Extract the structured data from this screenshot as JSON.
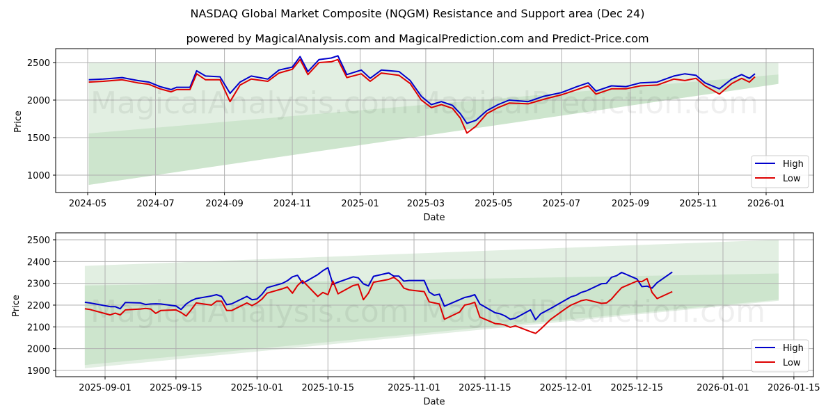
{
  "title": "NASDAQ Global Market Composite (NQGM) Resistance and Support area (Dec 24)",
  "subtitle": "powered by MagicalAnalysis.com and MagicalPrediction.com and Predict-Price.com",
  "watermarks": [
    "MagicalAnalysis.com",
    "MagicalPrediction.com"
  ],
  "colors": {
    "high": "#0000cc",
    "low": "#dd0000",
    "band_outer": "#e2efe2",
    "band_inner": "#cde5cd",
    "grid": "#b0b0b0"
  },
  "legend": {
    "high": "High",
    "low": "Low"
  },
  "chart_data": [
    {
      "type": "line",
      "title": "NASDAQ Global Market Composite (NQGM) Resistance and Support area (Dec 24)",
      "xlabel": "Date",
      "ylabel": "Price",
      "ylim": [
        770,
        2680
      ],
      "yticks": [
        1000,
        1500,
        2000,
        2500
      ],
      "xticks": [
        "2024-05",
        "2024-07",
        "2024-09",
        "2024-11",
        "2025-01",
        "2025-03",
        "2025-05",
        "2025-07",
        "2025-09",
        "2025-11",
        "2026-01"
      ],
      "grid": true,
      "legend_position": "lower right",
      "bands": {
        "outer": {
          "start": "2024-05-02",
          "end": "2026-01-12",
          "upper": [
            2500,
            2500
          ],
          "lower_start": 870,
          "lower_end": 2230
        },
        "inner": {
          "start": "2024-05-02",
          "end": "2026-01-12",
          "upper_start": 1555,
          "upper_end": 2340,
          "lower_start": 870,
          "lower_end": 2215
        },
        "light_top": {
          "upper_start": 2500,
          "upper_end": 2490,
          "lower_start": 1555,
          "lower_end": 2340
        }
      },
      "x": [
        "2024-05-02",
        "2024-05-15",
        "2024-06-01",
        "2024-06-15",
        "2024-06-25",
        "2024-07-05",
        "2024-07-15",
        "2024-07-20",
        "2024-08-01",
        "2024-08-07",
        "2024-08-15",
        "2024-08-28",
        "2024-09-06",
        "2024-09-15",
        "2024-09-25",
        "2024-10-10",
        "2024-10-20",
        "2024-11-01",
        "2024-11-08",
        "2024-11-15",
        "2024-11-25",
        "2024-12-06",
        "2024-12-12",
        "2024-12-20",
        "2025-01-02",
        "2025-01-10",
        "2025-01-20",
        "2025-02-05",
        "2025-02-15",
        "2025-02-25",
        "2025-03-06",
        "2025-03-15",
        "2025-03-25",
        "2025-04-01",
        "2025-04-07",
        "2025-04-15",
        "2025-04-25",
        "2025-05-05",
        "2025-05-15",
        "2025-06-01",
        "2025-06-15",
        "2025-07-01",
        "2025-07-15",
        "2025-07-25",
        "2025-08-01",
        "2025-08-15",
        "2025-08-28",
        "2025-09-10",
        "2025-09-25",
        "2025-10-10",
        "2025-10-20",
        "2025-10-30",
        "2025-11-07",
        "2025-11-20",
        "2025-12-01",
        "2025-12-10",
        "2025-12-17",
        "2025-12-22"
      ],
      "series": [
        {
          "name": "High",
          "values": [
            2270,
            2280,
            2300,
            2260,
            2240,
            2180,
            2140,
            2170,
            2170,
            2390,
            2320,
            2310,
            2090,
            2240,
            2320,
            2280,
            2400,
            2440,
            2580,
            2380,
            2540,
            2560,
            2590,
            2340,
            2400,
            2290,
            2400,
            2380,
            2260,
            2050,
            1940,
            1980,
            1930,
            1820,
            1690,
            1730,
            1860,
            1940,
            2000,
            1980,
            2050,
            2100,
            2180,
            2230,
            2120,
            2190,
            2180,
            2230,
            2240,
            2320,
            2350,
            2330,
            2230,
            2150,
            2280,
            2340,
            2290,
            2350
          ]
        },
        {
          "name": "Low",
          "values": [
            2240,
            2250,
            2270,
            2230,
            2210,
            2150,
            2110,
            2140,
            2140,
            2350,
            2270,
            2270,
            1980,
            2200,
            2280,
            2250,
            2360,
            2410,
            2540,
            2340,
            2500,
            2510,
            2540,
            2300,
            2350,
            2250,
            2360,
            2330,
            2220,
            2000,
            1900,
            1940,
            1890,
            1760,
            1560,
            1650,
            1820,
            1900,
            1960,
            1950,
            2010,
            2070,
            2140,
            2190,
            2080,
            2150,
            2150,
            2190,
            2200,
            2280,
            2260,
            2290,
            2190,
            2080,
            2220,
            2290,
            2240,
            2310
          ]
        }
      ]
    },
    {
      "type": "line",
      "xlabel": "Date",
      "ylabel": "Price",
      "ylim": [
        1870,
        2530
      ],
      "yticks": [
        1900,
        2000,
        2100,
        2200,
        2300,
        2400,
        2500
      ],
      "xticks": [
        "2025-09-01",
        "2025-09-15",
        "2025-10-01",
        "2025-10-15",
        "2025-11-01",
        "2025-11-15",
        "2025-12-01",
        "2025-12-15",
        "2026-01-01",
        "2026-01-15"
      ],
      "grid": true,
      "legend_position": "lower right",
      "bands": {
        "outer": {
          "start": "2025-08-28",
          "end": "2026-01-12",
          "upper_start": 2380,
          "upper_end": 2500,
          "lower_start": 1910,
          "lower_end": 2220
        },
        "inner": {
          "start": "2025-08-28",
          "end": "2026-01-12",
          "upper_start": 2290,
          "upper_end": 2345,
          "lower_start": 1925,
          "lower_end": 2225
        }
      },
      "x": [
        "2025-08-28",
        "2025-08-29",
        "2025-09-02",
        "2025-09-03",
        "2025-09-04",
        "2025-09-05",
        "2025-09-08",
        "2025-09-09",
        "2025-09-10",
        "2025-09-11",
        "2025-09-12",
        "2025-09-15",
        "2025-09-16",
        "2025-09-17",
        "2025-09-18",
        "2025-09-19",
        "2025-09-22",
        "2025-09-23",
        "2025-09-24",
        "2025-09-25",
        "2025-09-26",
        "2025-09-29",
        "2025-09-30",
        "2025-10-01",
        "2025-10-02",
        "2025-10-03",
        "2025-10-06",
        "2025-10-07",
        "2025-10-08",
        "2025-10-09",
        "2025-10-10",
        "2025-10-13",
        "2025-10-14",
        "2025-10-15",
        "2025-10-16",
        "2025-10-17",
        "2025-10-20",
        "2025-10-21",
        "2025-10-22",
        "2025-10-23",
        "2025-10-24",
        "2025-10-27",
        "2025-10-28",
        "2025-10-29",
        "2025-10-30",
        "2025-10-31",
        "2025-11-03",
        "2025-11-04",
        "2025-11-05",
        "2025-11-06",
        "2025-11-07",
        "2025-11-10",
        "2025-11-11",
        "2025-11-12",
        "2025-11-13",
        "2025-11-14",
        "2025-11-17",
        "2025-11-18",
        "2025-11-19",
        "2025-11-20",
        "2025-11-21",
        "2025-11-24",
        "2025-11-25",
        "2025-11-26",
        "2025-11-28",
        "2025-12-01",
        "2025-12-02",
        "2025-12-03",
        "2025-12-04",
        "2025-12-05",
        "2025-12-08",
        "2025-12-09",
        "2025-12-10",
        "2025-12-11",
        "2025-12-12",
        "2025-12-15",
        "2025-12-16",
        "2025-12-17",
        "2025-12-18",
        "2025-12-19",
        "2025-12-22"
      ],
      "series": [
        {
          "name": "High",
          "values": [
            2213,
            2210,
            2193,
            2193,
            2183,
            2212,
            2210,
            2203,
            2205,
            2206,
            2205,
            2196,
            2180,
            2205,
            2220,
            2230,
            2242,
            2248,
            2240,
            2202,
            2206,
            2240,
            2225,
            2228,
            2250,
            2280,
            2300,
            2312,
            2330,
            2337,
            2300,
            2340,
            2358,
            2372,
            2295,
            2305,
            2330,
            2325,
            2298,
            2288,
            2332,
            2348,
            2333,
            2333,
            2310,
            2313,
            2313,
            2260,
            2245,
            2250,
            2195,
            2225,
            2235,
            2240,
            2248,
            2205,
            2165,
            2160,
            2150,
            2135,
            2140,
            2178,
            2133,
            2160,
            2185,
            2225,
            2238,
            2245,
            2258,
            2265,
            2298,
            2300,
            2328,
            2335,
            2350,
            2320,
            2285,
            2287,
            2278,
            2303,
            2352
          ]
        },
        {
          "name": "Low",
          "values": [
            2183,
            2180,
            2155,
            2163,
            2155,
            2178,
            2182,
            2185,
            2182,
            2162,
            2175,
            2178,
            2166,
            2150,
            2178,
            2210,
            2200,
            2218,
            2218,
            2175,
            2175,
            2210,
            2198,
            2210,
            2228,
            2255,
            2275,
            2283,
            2255,
            2290,
            2312,
            2240,
            2258,
            2248,
            2310,
            2252,
            2290,
            2295,
            2225,
            2255,
            2305,
            2318,
            2328,
            2310,
            2278,
            2270,
            2262,
            2215,
            2210,
            2205,
            2135,
            2168,
            2200,
            2205,
            2213,
            2145,
            2115,
            2113,
            2108,
            2098,
            2105,
            2078,
            2070,
            2090,
            2135,
            2185,
            2200,
            2210,
            2220,
            2225,
            2208,
            2210,
            2228,
            2255,
            2280,
            2310,
            2308,
            2322,
            2258,
            2230,
            2262
          ]
        }
      ]
    }
  ]
}
